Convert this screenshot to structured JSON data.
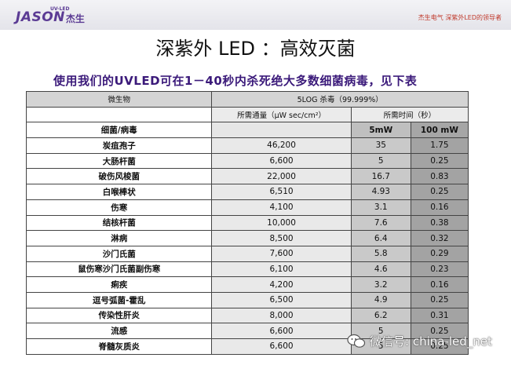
{
  "header": {
    "logo_text": "JASON",
    "logo_suffix": "杰生",
    "logo_tag": "UV-LED",
    "tagline": "杰生电气  深紫外LED的领导者"
  },
  "title": "深紫外 LED ：高效灭菌",
  "subtitle": "使用我们的UVLED可在1－40秒内杀死绝大多数细菌病毒，见下表",
  "table": {
    "col_microbe": "微生物",
    "col_kill": "5LOG 杀毒（99.999%）",
    "col_dose": "所需通量（μW sec/cm²）",
    "col_time": "所需时间（秒）",
    "label_row": {
      "name": "细菌/病毒",
      "p5": "5mW",
      "p100": "100 mW"
    },
    "rows": [
      {
        "name": "炭疽孢子",
        "dose": "46,200",
        "t5": "35",
        "t100": "1.75"
      },
      {
        "name": "大肠杆菌",
        "dose": "6,600",
        "t5": "5",
        "t100": "0.25"
      },
      {
        "name": "破伤风梭菌",
        "dose": "22,000",
        "t5": "16.7",
        "t100": "0.83"
      },
      {
        "name": "白喉棒状",
        "dose": "6,510",
        "t5": "4.93",
        "t100": "0.25"
      },
      {
        "name": "伤寒",
        "dose": "4,100",
        "t5": "3.1",
        "t100": "0.16"
      },
      {
        "name": "结核杆菌",
        "dose": "10,000",
        "t5": "7.6",
        "t100": "0.38"
      },
      {
        "name": "淋病",
        "dose": "8,500",
        "t5": "6.4",
        "t100": "0.32"
      },
      {
        "name": "沙门氏菌",
        "dose": "7,600",
        "t5": "5.8",
        "t100": "0.29"
      },
      {
        "name": "鼠伤寒沙门氏菌副伤寒",
        "dose": "6,100",
        "t5": "4.6",
        "t100": "0.23"
      },
      {
        "name": "痢疾",
        "dose": "4,200",
        "t5": "3.2",
        "t100": "0.16"
      },
      {
        "name": "逗号弧菌-霍乱",
        "dose": "6,500",
        "t5": "4.9",
        "t100": "0.25"
      },
      {
        "name": "传染性肝炎",
        "dose": "8,000",
        "t5": "6.2",
        "t100": "0.31"
      },
      {
        "name": "流感",
        "dose": "6,600",
        "t5": "5",
        "t100": "0.25"
      },
      {
        "name": "脊髓灰质炎",
        "dose": "6,600",
        "t5": "5",
        "t100": "0.25"
      }
    ]
  },
  "watermark": "微信号: china-led_net",
  "colors": {
    "brand": "#5b3b94",
    "subtitle": "#3b1a7a",
    "highlight": "#e0350b"
  }
}
